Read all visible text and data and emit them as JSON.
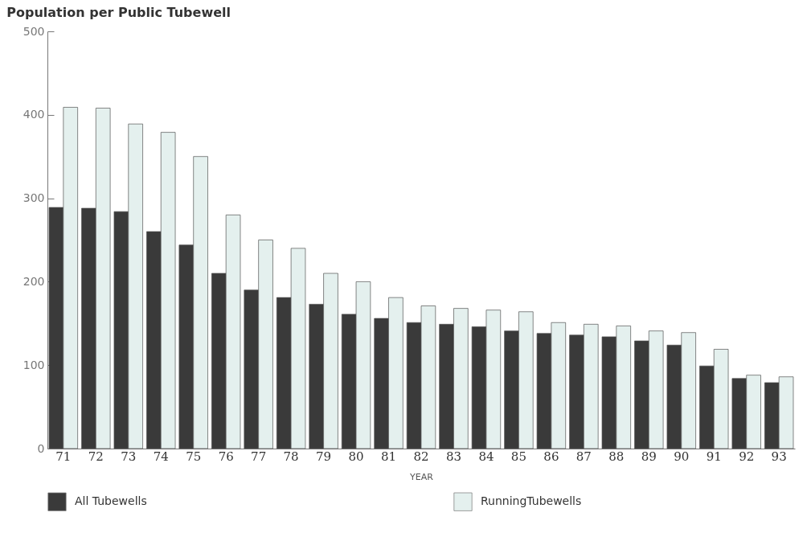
{
  "chart_data": {
    "type": "bar",
    "title": "Population per Public Tubewell",
    "xlabel": "YEAR",
    "categories": [
      "71",
      "72",
      "73",
      "74",
      "75",
      "76",
      "77",
      "78",
      "79",
      "80",
      "81",
      "82",
      "83",
      "84",
      "85",
      "86",
      "87",
      "88",
      "89",
      "90",
      "91",
      "92",
      "93"
    ],
    "series": [
      {
        "name": "All Tubewells",
        "color": "#3a3a3a",
        "values": [
          289,
          288,
          284,
          260,
          244,
          210,
          190,
          181,
          173,
          161,
          156,
          151,
          149,
          146,
          141,
          138,
          136,
          134,
          129,
          124,
          99,
          84,
          79
        ]
      },
      {
        "name": "RunningTubewells",
        "color": "#e4f0ee",
        "values": [
          409,
          408,
          389,
          379,
          350,
          280,
          250,
          240,
          210,
          200,
          181,
          171,
          168,
          166,
          164,
          151,
          149,
          147,
          141,
          139,
          119,
          88,
          86
        ]
      }
    ],
    "ylim": [
      0,
      500
    ],
    "yticks": [
      0,
      100,
      200,
      300,
      400,
      500
    ],
    "grid": false,
    "legend": "bottom"
  }
}
